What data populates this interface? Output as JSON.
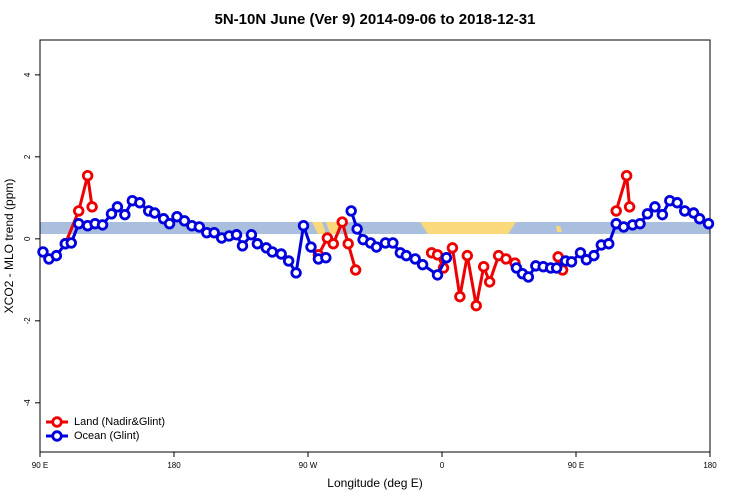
{
  "chart_data": {
    "type": "line",
    "title": "5N-10N June (Ver 9)   2014-09-06 to 2018-12-31",
    "xlabel": "Longitude (deg E)",
    "ylabel": "XCO2 - MLO trend (ppm)",
    "xlim": [
      90,
      540
    ],
    "ylim": [
      -5.2,
      4.85
    ],
    "xticks": [
      {
        "value": 90,
        "label": "90 E"
      },
      180,
      {
        "value": 270,
        "label": "90 W"
      },
      {
        "value": 360,
        "label": "0"
      },
      {
        "value": 450,
        "label": "90 E"
      },
      {
        "value": 540,
        "label": "180"
      }
    ],
    "yticks": [
      -4,
      -2,
      0,
      2,
      4
    ],
    "legend": "bottom-left",
    "series": [
      {
        "name": "Land (Nadir&Glint)",
        "color": "#ee0000",
        "x": [
          107,
          116,
          122,
          125,
          null,
          277,
          283,
          287,
          293,
          297,
          302,
          null,
          353,
          357,
          361,
          367,
          372,
          377,
          383,
          388,
          392,
          398,
          403,
          409,
          null,
          438,
          441,
          null,
          477,
          484,
          486
        ],
        "values": [
          -0.12,
          0.68,
          1.54,
          0.78,
          null,
          -0.39,
          0.02,
          -0.12,
          0.41,
          -0.12,
          -0.76,
          null,
          -0.34,
          -0.39,
          -0.71,
          -0.22,
          -1.41,
          -0.41,
          -1.63,
          -0.68,
          -1.05,
          -0.41,
          -0.49,
          -0.59,
          null,
          -0.44,
          -0.76,
          null,
          0.68,
          1.54,
          0.78
        ]
      },
      {
        "name": "Ocean (Glint)",
        "color": "#0000dd",
        "x": [
          92,
          96,
          101,
          107,
          111,
          116,
          122,
          127,
          132,
          138,
          142,
          147,
          152,
          157,
          163,
          167,
          173,
          177,
          182,
          187,
          192,
          197,
          202,
          207,
          212,
          217,
          222,
          226,
          232,
          236,
          242,
          246,
          252,
          257,
          262,
          267,
          272,
          277,
          282,
          null,
          299,
          303,
          307,
          312,
          316,
          322,
          327,
          332,
          336,
          342,
          347,
          357,
          363,
          null,
          410,
          414,
          418,
          423,
          428,
          433,
          437,
          443,
          447,
          453,
          457,
          462,
          467,
          472,
          477,
          482,
          488,
          493,
          498,
          503,
          508,
          513,
          518,
          523,
          529,
          533,
          539
        ],
        "values": [
          -0.32,
          -0.49,
          -0.41,
          -0.12,
          -0.1,
          0.37,
          0.32,
          0.37,
          0.34,
          0.61,
          0.78,
          0.59,
          0.93,
          0.88,
          0.68,
          0.63,
          0.49,
          0.37,
          0.54,
          0.44,
          0.32,
          0.29,
          0.15,
          0.15,
          0.02,
          0.07,
          0.1,
          -0.17,
          0.1,
          -0.12,
          -0.22,
          -0.32,
          -0.37,
          -0.54,
          -0.83,
          0.32,
          -0.2,
          -0.49,
          -0.46,
          null,
          0.68,
          0.24,
          -0.02,
          -0.1,
          -0.2,
          -0.1,
          -0.1,
          -0.34,
          -0.41,
          -0.49,
          -0.63,
          -0.88,
          -0.46,
          null,
          -0.71,
          -0.85,
          -0.93,
          -0.66,
          -0.68,
          -0.71,
          -0.71,
          -0.54,
          -0.56,
          -0.34,
          -0.51,
          -0.41,
          -0.15,
          -0.12,
          0.37,
          0.29,
          0.34,
          0.37,
          0.61,
          0.78,
          0.59,
          0.93,
          0.88,
          0.68,
          0.63,
          0.49,
          0.37
        ]
      }
    ]
  }
}
